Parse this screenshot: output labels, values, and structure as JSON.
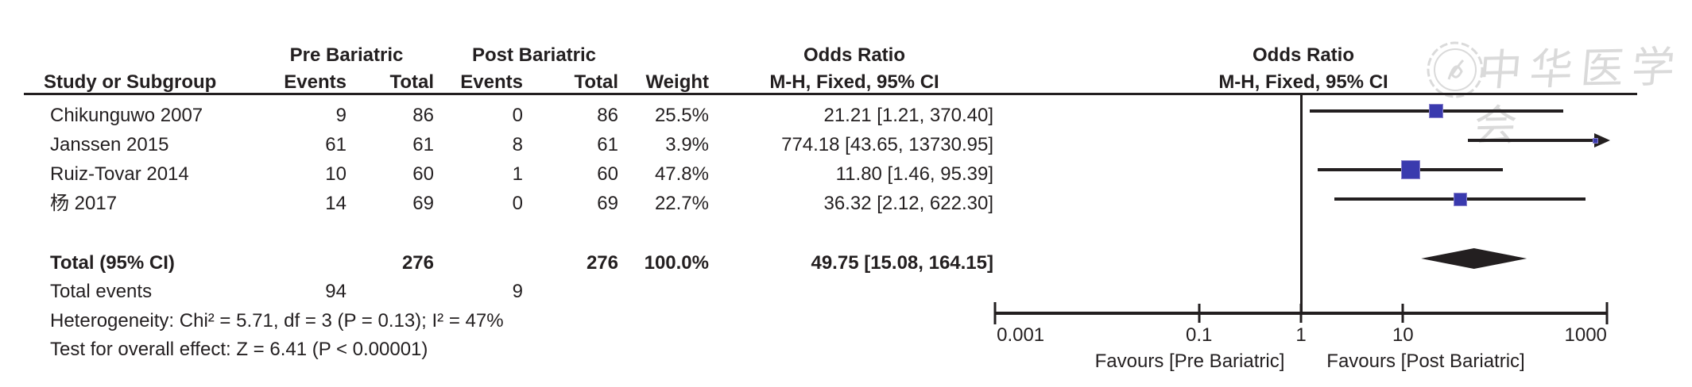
{
  "watermark": {
    "text": "中华医学会",
    "logo": "chinese-medical-association-seal"
  },
  "colors": {
    "ink": "#231f20",
    "square": "#3a3aae",
    "square_border": "#8c84cc",
    "diamond": "#231f20",
    "watermark": "#dadada"
  },
  "chart_data": {
    "type": "forest",
    "group1_label": "Pre Bariatric",
    "group2_label": "Post Bariatric",
    "effect_header": "Odds Ratio",
    "method_header": "M-H, Fixed, 95% CI",
    "columns": {
      "study": "Study or Subgroup",
      "events": "Events",
      "total": "Total",
      "weight": "Weight"
    },
    "studies": [
      {
        "study": "Chikunguwo 2007",
        "events1": "9",
        "total1": "86",
        "events2": "0",
        "total2": "86",
        "weight": "25.5%",
        "weight_pct": 25.5,
        "or": 21.21,
        "ci_lo": 1.21,
        "ci_hi": 370.4,
        "or_text": "21.21 [1.21, 370.40]"
      },
      {
        "study": "Janssen 2015",
        "events1": "61",
        "total1": "61",
        "events2": "8",
        "total2": "61",
        "weight": "3.9%",
        "weight_pct": 3.9,
        "or": 774.18,
        "ci_lo": 43.65,
        "ci_hi": 13730.95,
        "or_text": "774.18 [43.65, 13730.95]"
      },
      {
        "study": "Ruiz-Tovar 2014",
        "events1": "10",
        "total1": "60",
        "events2": "1",
        "total2": "60",
        "weight": "47.8%",
        "weight_pct": 47.8,
        "or": 11.8,
        "ci_lo": 1.46,
        "ci_hi": 95.39,
        "or_text": "11.80 [1.46, 95.39]"
      },
      {
        "study": "杨 2017",
        "events1": "14",
        "total1": "69",
        "events2": "0",
        "total2": "69",
        "weight": "22.7%",
        "weight_pct": 22.7,
        "or": 36.32,
        "ci_lo": 2.12,
        "ci_hi": 622.3,
        "or_text": "36.32 [2.12, 622.30]"
      }
    ],
    "total_row": {
      "label": "Total (95% CI)",
      "total1": "276",
      "total2": "276",
      "weight": "100.0%",
      "or": 49.75,
      "ci_lo": 15.08,
      "ci_hi": 164.15,
      "or_text": "49.75 [15.08, 164.15]"
    },
    "total_events": {
      "label": "Total events",
      "events1": "94",
      "events2": "9"
    },
    "heterogeneity": "Heterogeneity: Chi² = 5.71, df = 3 (P = 0.13); I² = 47%",
    "overall_effect": "Test for overall effect: Z = 6.41 (P < 0.00001)",
    "axis": {
      "scale": "log10",
      "min": 0.001,
      "max": 1000,
      "ticks": [
        0.001,
        0.1,
        1,
        10,
        1000
      ],
      "tick_labels": [
        "0.001",
        "0.1",
        "1",
        "10",
        "1000"
      ],
      "favours_left": "Favours [Pre Bariatric]",
      "favours_right": "Favours [Post Bariatric]"
    }
  }
}
